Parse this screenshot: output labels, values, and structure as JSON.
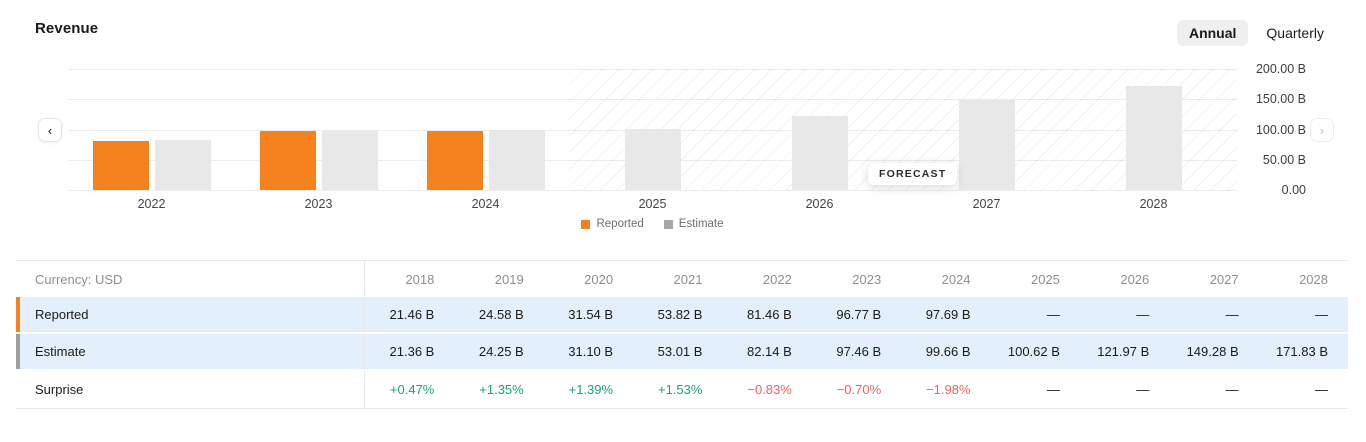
{
  "header": {
    "title": "Revenue",
    "toggle": {
      "options": [
        "Annual",
        "Quarterly"
      ],
      "selected": "Annual"
    }
  },
  "colors": {
    "reported": "#f5821f",
    "estimate_bar": "#e8e8e8",
    "estimate_swatch": "#a6a6a6",
    "estimate_accent": "#9e9e9e",
    "row_highlight": "#e3effc",
    "positive": "#17a27d",
    "negative": "#f15f5f"
  },
  "chart_data": {
    "type": "bar",
    "title": "Revenue",
    "categories": [
      "2022",
      "2023",
      "2024",
      "2025",
      "2026",
      "2027",
      "2028"
    ],
    "series": [
      {
        "name": "Reported",
        "color": "#f5821f",
        "values": [
          81.46,
          96.77,
          97.69,
          null,
          null,
          null,
          null
        ]
      },
      {
        "name": "Estimate",
        "color": "#e8e8e8",
        "values": [
          82.14,
          97.46,
          99.66,
          100.62,
          121.97,
          149.28,
          171.83
        ]
      }
    ],
    "unit": "B",
    "ylim": [
      0,
      200
    ],
    "ytick_values": [
      200,
      150,
      100,
      50,
      0
    ],
    "ytick_labels": [
      "200.00 B",
      "150.00 B",
      "100.00 B",
      "50.00 B",
      "0.00"
    ],
    "forecast_label": "FORECAST",
    "forecast_start_category": "2025",
    "legend_position": "bottom",
    "grid": true
  },
  "nav": {
    "prev": "‹",
    "next": "›"
  },
  "table": {
    "corner_label": "Currency: USD",
    "years": [
      "2018",
      "2019",
      "2020",
      "2021",
      "2022",
      "2023",
      "2024",
      "2025",
      "2026",
      "2027",
      "2028"
    ],
    "rows": [
      {
        "label": "Reported",
        "accent": "#f5821f",
        "highlight": true,
        "values": [
          "21.46 B",
          "24.58 B",
          "31.54 B",
          "53.82 B",
          "81.46 B",
          "96.77 B",
          "97.69 B",
          "—",
          "—",
          "—",
          "—"
        ]
      },
      {
        "label": "Estimate",
        "accent": "#9e9e9e",
        "highlight": true,
        "values": [
          "21.36 B",
          "24.25 B",
          "31.10 B",
          "53.01 B",
          "82.14 B",
          "97.46 B",
          "99.66 B",
          "100.62 B",
          "121.97 B",
          "149.28 B",
          "171.83 B"
        ]
      },
      {
        "label": "Surprise",
        "accent": null,
        "highlight": false,
        "values": [
          "+0.47%",
          "+1.35%",
          "+1.39%",
          "+1.53%",
          "−0.83%",
          "−0.70%",
          "−1.98%",
          "—",
          "—",
          "—",
          "—"
        ]
      }
    ]
  }
}
